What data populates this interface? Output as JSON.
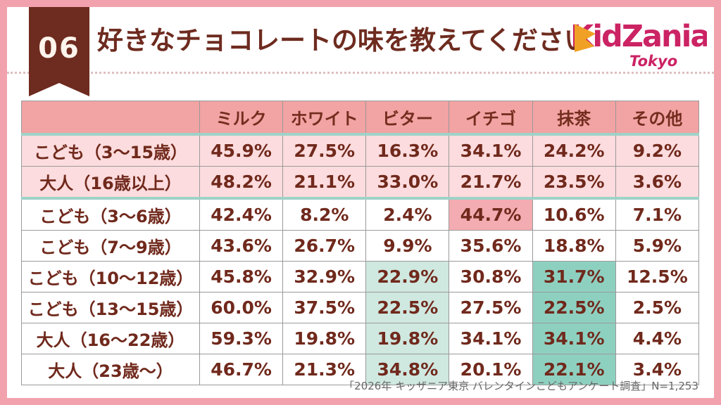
{
  "header": {
    "badge_number": "06",
    "title": "好きなチョコレートの味を教えてください"
  },
  "logo": {
    "brand": "KidZania",
    "city": "Tokyo",
    "brand_color": "#cb2364",
    "accent_color": "#f0a125"
  },
  "colors": {
    "frame_pink": "#f2a2ad",
    "ribbon_brown": "#6e2b1f",
    "text_brown": "#70291c",
    "header_salmon": "#f2a3a3",
    "summary_row_pink": "#fcdcde",
    "teal_separator": "#9ed2c8",
    "highlight_pink": "#f3acb1",
    "highlight_teal_light": "#cfe8e0",
    "highlight_teal_dark": "#8ed0c0"
  },
  "chart_data": {
    "type": "table",
    "title": "好きなチョコレートの味を教えてください",
    "columns": [
      "ミルク",
      "ホワイト",
      "ビター",
      "イチゴ",
      "抹茶",
      "その他"
    ],
    "rows": [
      {
        "label": "こども（3〜15歳）",
        "values": [
          "45.9%",
          "27.5%",
          "16.3%",
          "34.1%",
          "24.2%",
          "9.2%"
        ],
        "band": "pink",
        "teal_border_below": false,
        "highlights": {}
      },
      {
        "label": "大人（16歳以上）",
        "values": [
          "48.2%",
          "21.1%",
          "33.0%",
          "21.7%",
          "23.5%",
          "3.6%"
        ],
        "band": "pink",
        "teal_border_below": true,
        "highlights": {}
      },
      {
        "label": "こども（3〜6歳）",
        "values": [
          "42.4%",
          "8.2%",
          "2.4%",
          "44.7%",
          "10.6%",
          "7.1%"
        ],
        "band": "white",
        "teal_border_below": false,
        "highlights": {
          "3": "pink"
        }
      },
      {
        "label": "こども（7〜9歳）",
        "values": [
          "43.6%",
          "26.7%",
          "9.9%",
          "35.6%",
          "18.8%",
          "5.9%"
        ],
        "band": "white",
        "teal_border_below": false,
        "highlights": {}
      },
      {
        "label": "こども（10〜12歳）",
        "values": [
          "45.8%",
          "32.9%",
          "22.9%",
          "30.8%",
          "31.7%",
          "12.5%"
        ],
        "band": "white",
        "teal_border_below": false,
        "highlights": {
          "2": "teal-light",
          "4": "teal-dark"
        }
      },
      {
        "label": "こども（13〜15歳）",
        "values": [
          "60.0%",
          "37.5%",
          "22.5%",
          "27.5%",
          "22.5%",
          "2.5%"
        ],
        "band": "white",
        "teal_border_below": false,
        "highlights": {
          "2": "teal-light",
          "4": "teal-dark"
        }
      },
      {
        "label": "大人（16〜22歳）",
        "values": [
          "59.3%",
          "19.8%",
          "19.8%",
          "34.1%",
          "34.1%",
          "4.4%"
        ],
        "band": "white",
        "teal_border_below": false,
        "highlights": {
          "2": "teal-light",
          "4": "teal-dark"
        }
      },
      {
        "label": "大人（23歳〜）",
        "values": [
          "46.7%",
          "21.3%",
          "34.8%",
          "20.1%",
          "22.1%",
          "3.4%"
        ],
        "band": "white",
        "teal_border_below": false,
        "highlights": {
          "2": "teal-light",
          "4": "teal-dark"
        }
      }
    ]
  },
  "footer": {
    "source": "「2026年 キッザニア東京 バレンタインこどもアンケート調査」N=1,253"
  }
}
